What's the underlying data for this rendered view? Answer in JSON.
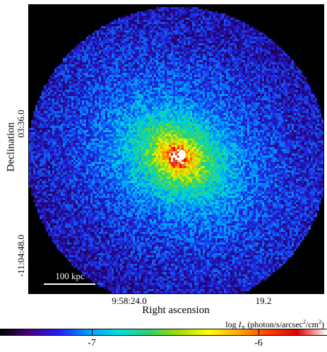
{
  "axes": {
    "ylabel": "Declination",
    "xlabel": "Right ascension",
    "yticks": [
      "03:36.0",
      "-11:04:48.0"
    ],
    "xticks": [
      "9:58:24.0",
      "19.2"
    ]
  },
  "colorbar": {
    "title": "log Iₓ (photon/s/arcsec²/cm²)",
    "title_main": "log ",
    "title_var": "I",
    "title_sub": "X",
    "title_rest": " (photon/s/arcsec",
    "title_sup": "2",
    "title_end": "/cm",
    "title_sup2": "2",
    "title_close": ")",
    "ticks": [
      "-7",
      "-6"
    ],
    "colormap": [
      "#000000",
      "#4a0080",
      "#2020ff",
      "#00a0ff",
      "#00e0e0",
      "#30d070",
      "#a0e000",
      "#ffff00",
      "#ffb000",
      "#ff4000",
      "#e00000",
      "#ffffff"
    ]
  },
  "scalebar": {
    "label": "100 kpc"
  }
}
